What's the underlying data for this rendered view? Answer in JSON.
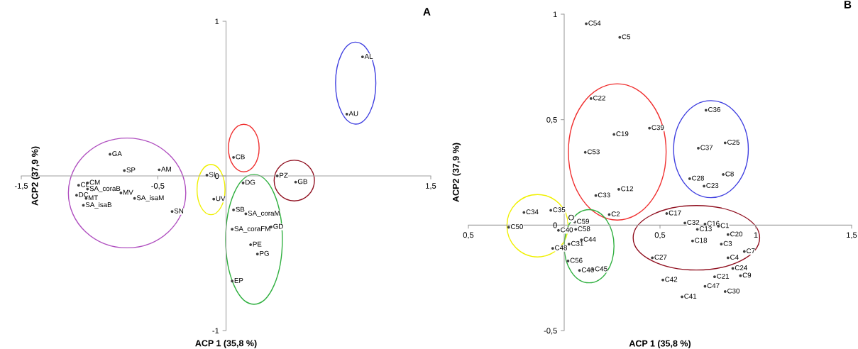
{
  "chart_data": [
    {
      "type": "scatter",
      "title": "A",
      "xlabel": "ACP 1 (35,8 %)",
      "ylabel": "ACP2 (37,9 %)",
      "marker": "circle",
      "xlim": [
        -1.5,
        1.5
      ],
      "ylim": [
        -1,
        1
      ],
      "xticks": [
        {
          "value": -1.5,
          "label": "-1,5"
        },
        {
          "value": -0.5,
          "label": "-0,5"
        },
        {
          "value": 1.5,
          "label": "1,5"
        }
      ],
      "yticks": [
        {
          "value": -1,
          "label": "-1"
        },
        {
          "value": 0,
          "label": "0"
        },
        {
          "value": 1,
          "label": "1"
        }
      ],
      "series": [
        {
          "color": "#404040",
          "x": [
            -0.85,
            -0.745,
            -0.49,
            -1.08,
            -1.015,
            -1.015,
            -1.095,
            -1.025,
            -0.77,
            -0.67,
            -1.045,
            -0.395,
            -0.14,
            -0.09,
            1.0,
            0.885,
            0.055,
            0.375,
            0.51,
            0.125,
            0.055,
            0.145,
            0.045,
            0.33,
            0.18,
            0.23,
            0.045
          ],
          "values": [
            0.14,
            0.035,
            0.04,
            -0.06,
            -0.045,
            -0.085,
            -0.125,
            -0.145,
            -0.11,
            -0.145,
            -0.19,
            -0.23,
            0.005,
            -0.15,
            0.77,
            0.4,
            0.12,
            0.0,
            -0.04,
            -0.045,
            -0.22,
            -0.245,
            -0.345,
            -0.33,
            -0.445,
            -0.505,
            -0.68
          ],
          "value_labels": [
            "GA",
            "SP",
            "AM",
            "CL",
            "CM",
            "SA_coraB",
            "DC",
            "MT",
            "MV",
            "SA_isaM",
            "SA_isaB",
            "SN",
            "SI",
            "UV",
            "AL",
            "AU",
            "CB",
            "PZ",
            "GB",
            "DG",
            "SB",
            "SA_coraM",
            "SA_coraFM",
            "GD",
            "PE",
            "PG",
            "EP"
          ]
        }
      ]
    },
    {
      "type": "scatter",
      "title": "B",
      "xlabel": "ACP 1 (35,8 %)",
      "ylabel": "ACP2 (37,9 %)",
      "marker": "circle",
      "xlim": [
        -0.5,
        1.5
      ],
      "ylim": [
        -0.5,
        1
      ],
      "xticks": [
        {
          "value": -0.5,
          "label": "0,5"
        },
        {
          "value": 0.5,
          "label": "0,5"
        },
        {
          "value": 1,
          "label": "1"
        },
        {
          "value": 1.5,
          "label": "1,5"
        }
      ],
      "yticks": [
        {
          "value": -0.5,
          "label": "-0,5"
        },
        {
          "value": 0,
          "label": "0"
        },
        {
          "value": 0.5,
          "label": "0,5"
        },
        {
          "value": 1,
          "label": "1"
        }
      ],
      "annotations": [
        "O"
      ],
      "series": [
        {
          "color": "#404040",
          "x": [
            0.115,
            0.29,
            0.14,
            0.445,
            0.26,
            0.11,
            0.285,
            0.165,
            0.235,
            -0.21,
            -0.07,
            -0.29,
            0.055,
            0.06,
            -0.03,
            0.09,
            0.025,
            -0.06,
            0.02,
            0.08,
            0.15,
            0.46,
            0.74,
            0.84,
            0.7,
            0.83,
            0.655,
            0.73,
            0.535,
            0.63,
            0.735,
            0.805,
            0.695,
            0.855,
            0.67,
            0.82,
            0.94,
            0.855,
            0.88,
            0.92,
            0.785,
            0.515,
            0.735,
            0.84,
            0.615
          ],
          "values": [
            0.955,
            0.89,
            0.6,
            0.46,
            0.43,
            0.345,
            0.17,
            0.14,
            0.05,
            0.06,
            0.07,
            -0.01,
            0.015,
            -0.02,
            -0.025,
            -0.07,
            -0.09,
            -0.11,
            -0.17,
            -0.215,
            -0.21,
            -0.155,
            0.545,
            0.39,
            0.365,
            0.24,
            0.22,
            0.185,
            0.055,
            0.01,
            0.005,
            -0.005,
            -0.02,
            -0.045,
            -0.075,
            -0.09,
            -0.125,
            -0.155,
            -0.205,
            -0.24,
            -0.245,
            -0.26,
            -0.29,
            -0.315,
            -0.34
          ],
          "value_labels": [
            "C54",
            "C5",
            "C22",
            "C39",
            "C19",
            "C53",
            "C12",
            "C33",
            "C2",
            "C34",
            "C35",
            "C50",
            "C59",
            "C58",
            "C40",
            "C44",
            "C31",
            "C48",
            "C56",
            "C46",
            "C45",
            "C27",
            "C36",
            "C25",
            "C37",
            "C8",
            "C28",
            "C23",
            "C17",
            "C32",
            "C16",
            "C1",
            "C13",
            "C20",
            "C18",
            "C3",
            "C7",
            "C4",
            "C24",
            "C9",
            "C21",
            "C42",
            "C47",
            "C30",
            "C41"
          ]
        }
      ]
    }
  ]
}
